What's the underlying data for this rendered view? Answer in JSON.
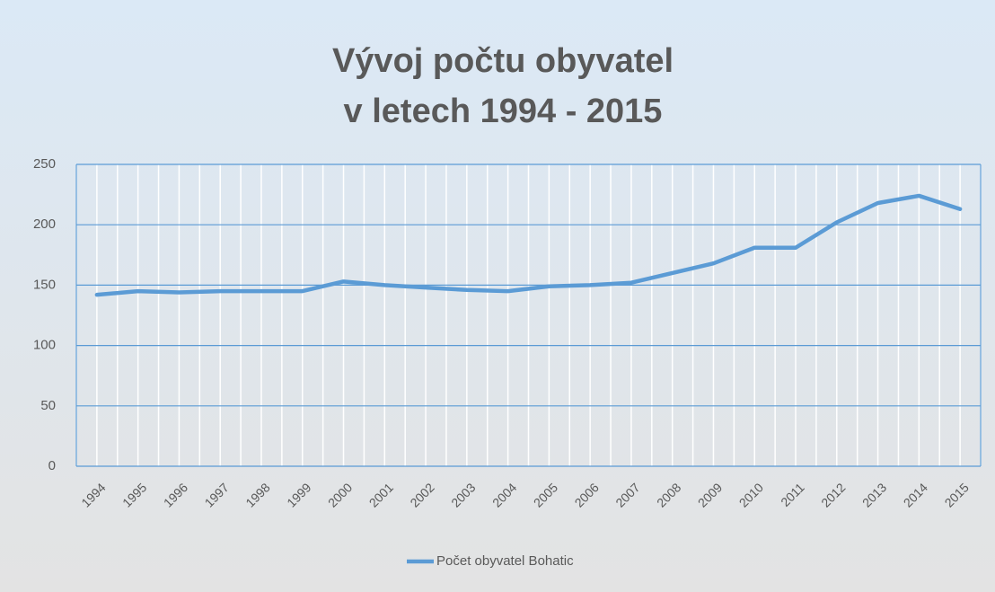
{
  "chart_data": {
    "type": "line",
    "title": [
      "Vývoj počtu obyvatel",
      "v letech 1994 - 2015"
    ],
    "categories": [
      "1994",
      "1995",
      "1996",
      "1997",
      "1998",
      "1999",
      "2000",
      "2001",
      "2002",
      "2003",
      "2004",
      "2005",
      "2006",
      "2007",
      "2008",
      "2009",
      "2010",
      "2011",
      "2012",
      "2013",
      "2014",
      "2015"
    ],
    "series": [
      {
        "name": "Počet obyvatel Bohatic",
        "color": "#5b9bd5",
        "values": [
          142,
          145,
          144,
          145,
          145,
          145,
          153,
          150,
          148,
          146,
          145,
          149,
          150,
          152,
          160,
          168,
          181,
          181,
          202,
          218,
          224,
          213
        ]
      }
    ],
    "ylim": [
      0,
      250
    ],
    "yticks": [
      0,
      50,
      100,
      150,
      200,
      250
    ],
    "grid": true,
    "legend": "bottom"
  }
}
